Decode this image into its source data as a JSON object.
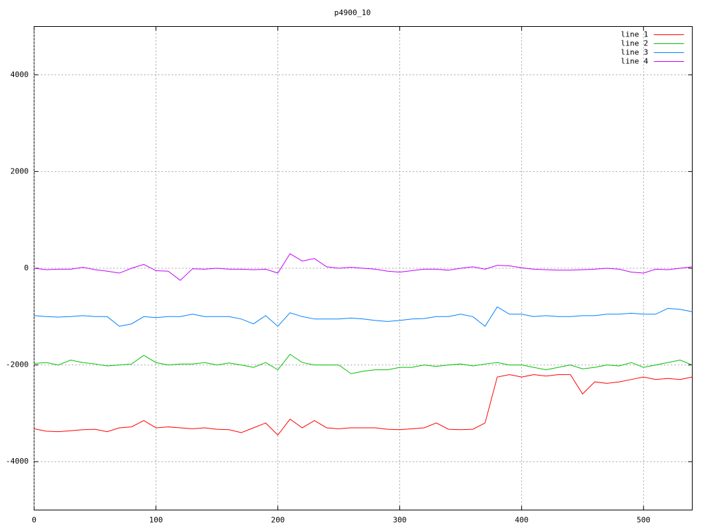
{
  "chart_data": {
    "type": "line",
    "title": "p4900_10",
    "x": [
      0,
      10,
      20,
      30,
      40,
      50,
      60,
      70,
      80,
      90,
      100,
      110,
      120,
      130,
      140,
      150,
      160,
      170,
      180,
      190,
      200,
      210,
      220,
      230,
      240,
      250,
      260,
      270,
      280,
      290,
      300,
      310,
      320,
      330,
      340,
      350,
      360,
      370,
      380,
      390,
      400,
      410,
      420,
      430,
      440,
      450,
      460,
      470,
      480,
      490,
      500,
      510,
      520,
      530,
      540
    ],
    "series": [
      {
        "name": "line 1",
        "color": "#ff0000",
        "values": [
          -3320,
          -3370,
          -3380,
          -3360,
          -3340,
          -3330,
          -3380,
          -3300,
          -3280,
          -3150,
          -3300,
          -3280,
          -3300,
          -3320,
          -3300,
          -3330,
          -3340,
          -3400,
          -3300,
          -3200,
          -3450,
          -3120,
          -3300,
          -3150,
          -3300,
          -3320,
          -3300,
          -3300,
          -3300,
          -3330,
          -3340,
          -3320,
          -3300,
          -3200,
          -3330,
          -3340,
          -3330,
          -3200,
          -2250,
          -2200,
          -2250,
          -2200,
          -2230,
          -2200,
          -2200,
          -2600,
          -2350,
          -2380,
          -2350,
          -2300,
          -2250,
          -2300,
          -2280,
          -2300,
          -2250
        ]
      },
      {
        "name": "line 2",
        "color": "#00c000",
        "values": [
          -1970,
          -1950,
          -2000,
          -1900,
          -1950,
          -1980,
          -2020,
          -2000,
          -1980,
          -1800,
          -1950,
          -2000,
          -1980,
          -1980,
          -1950,
          -2000,
          -1960,
          -2000,
          -2050,
          -1950,
          -2100,
          -1780,
          -1950,
          -2000,
          -2000,
          -2000,
          -2180,
          -2130,
          -2100,
          -2100,
          -2050,
          -2050,
          -2000,
          -2030,
          -2000,
          -1980,
          -2020,
          -1980,
          -1950,
          -2000,
          -2000,
          -2050,
          -2100,
          -2050,
          -2000,
          -2080,
          -2050,
          -2000,
          -2020,
          -1950,
          -2050,
          -2000,
          -1950,
          -1900,
          -2000
        ]
      },
      {
        "name": "line 3",
        "color": "#0080ff",
        "values": [
          -980,
          -1000,
          -1010,
          -1000,
          -980,
          -1000,
          -1000,
          -1200,
          -1150,
          -1000,
          -1020,
          -1000,
          -1000,
          -950,
          -1000,
          -1000,
          -1000,
          -1050,
          -1150,
          -980,
          -1200,
          -920,
          -1000,
          -1050,
          -1050,
          -1050,
          -1030,
          -1050,
          -1080,
          -1100,
          -1080,
          -1050,
          -1040,
          -1000,
          -1000,
          -950,
          -1000,
          -1200,
          -800,
          -950,
          -950,
          -1000,
          -980,
          -1000,
          -1000,
          -980,
          -980,
          -950,
          -950,
          -930,
          -950,
          -950,
          -830,
          -850,
          -900
        ]
      },
      {
        "name": "line 4",
        "color": "#c000ff",
        "values": [
          0,
          -30,
          -20,
          -20,
          20,
          -30,
          -60,
          -100,
          0,
          80,
          -50,
          -60,
          -250,
          -10,
          -20,
          0,
          -20,
          -20,
          -30,
          -20,
          -100,
          300,
          150,
          200,
          30,
          0,
          20,
          0,
          -20,
          -60,
          -80,
          -50,
          -20,
          -20,
          -40,
          0,
          30,
          -20,
          60,
          50,
          10,
          -20,
          -30,
          -40,
          -40,
          -30,
          -20,
          0,
          -20,
          -80,
          -100,
          -20,
          -30,
          0,
          30
        ]
      }
    ],
    "xlim": [
      0,
      540
    ],
    "xticks": [
      0,
      100,
      200,
      300,
      400,
      500
    ],
    "ylim": [
      -5000,
      5000
    ],
    "yticks": [
      -4000,
      -2000,
      0,
      2000,
      4000
    ],
    "grid": true,
    "legend": "top-right"
  }
}
